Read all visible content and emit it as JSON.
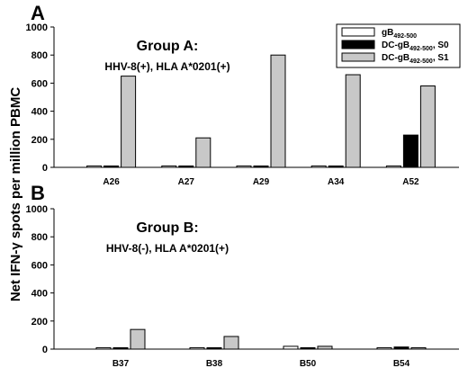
{
  "ylabel": "Net IFN-γ spots per million PBMC",
  "legend": {
    "items": [
      {
        "main": "gB",
        "sub": "492-500",
        "suffix": "",
        "color": "#ffffff"
      },
      {
        "main": "DC-gB",
        "sub": "492-500",
        "suffix": ", S0",
        "color": "#000000"
      },
      {
        "main": "DC-gB",
        "sub": "492-500",
        "suffix": ", S1",
        "color": "#c8c8c8"
      }
    ]
  },
  "chart_data": [
    {
      "type": "bar",
      "panel": "A",
      "title": "Group A:",
      "subtitle": "HHV-8(+), HLA A*0201(+)",
      "categories": [
        "A26",
        "A27",
        "A29",
        "A34",
        "A52"
      ],
      "ylim": [
        0,
        1000
      ],
      "yticks": [
        "0",
        "200",
        "400",
        "600",
        "800",
        "1000"
      ],
      "series": [
        {
          "name": "gB492-500",
          "values": [
            10,
            10,
            10,
            10,
            10
          ]
        },
        {
          "name": "DC-gB492-500, S0",
          "values": [
            10,
            10,
            10,
            10,
            230
          ]
        },
        {
          "name": "DC-gB492-500, S1",
          "values": [
            650,
            210,
            800,
            660,
            580
          ]
        }
      ]
    },
    {
      "type": "bar",
      "panel": "B",
      "title": "Group B:",
      "subtitle": "HHV-8(-), HLA A*0201(+)",
      "categories": [
        "B37",
        "B38",
        "B50",
        "B54"
      ],
      "ylim": [
        0,
        1000
      ],
      "yticks": [
        "0",
        "200",
        "400",
        "600",
        "800",
        "1000"
      ],
      "series": [
        {
          "name": "gB492-500",
          "values": [
            10,
            10,
            20,
            10
          ]
        },
        {
          "name": "DC-gB492-500, S0",
          "values": [
            10,
            10,
            10,
            15
          ]
        },
        {
          "name": "DC-gB492-500, S1",
          "values": [
            140,
            90,
            20,
            10
          ]
        }
      ]
    }
  ]
}
